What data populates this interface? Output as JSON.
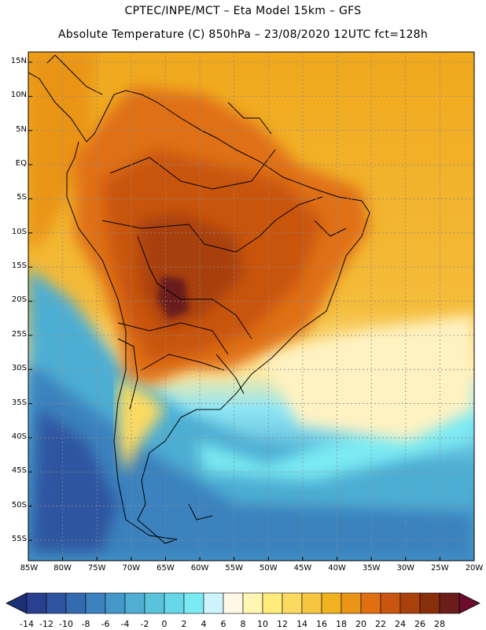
{
  "header": {
    "line1": "CPTEC/INPE/MCT –  Eta Model 15km – GFS",
    "line2": "Absolute Temperature (C) 850hPa – 23/08/2020 12UTC fct=128h"
  },
  "map": {
    "lat_labels": [
      "15N",
      "10N",
      "5N",
      "EQ",
      "5S",
      "10S",
      "15S",
      "20S",
      "25S",
      "30S",
      "35S",
      "40S",
      "45S",
      "50S",
      "55S"
    ],
    "lon_labels": [
      "85W",
      "80W",
      "75W",
      "70W",
      "65W",
      "60W",
      "55W",
      "50W",
      "45W",
      "40W",
      "35W",
      "30W",
      "25W",
      "20W"
    ],
    "lat_values": [
      15,
      10,
      5,
      0,
      -5,
      -10,
      -15,
      -20,
      -25,
      -30,
      -35,
      -40,
      -45,
      -50,
      -55
    ],
    "lon_values": [
      -85,
      -80,
      -75,
      -70,
      -65,
      -60,
      -55,
      -50,
      -45,
      -40,
      -35,
      -30,
      -25,
      -20
    ],
    "lat_range": [
      -58,
      16.5
    ],
    "lon_range": [
      -85,
      -20
    ]
  },
  "colorbar": {
    "labels": [
      "-14",
      "-12",
      "-10",
      "-8",
      "-6",
      "-4",
      "-2",
      "0",
      "2",
      "4",
      "6",
      "8",
      "10",
      "12",
      "14",
      "16",
      "18",
      "20",
      "22",
      "24",
      "26",
      "28"
    ],
    "colors": [
      "#2b3f8f",
      "#2f55a0",
      "#346bb0",
      "#3b82be",
      "#4498c9",
      "#4eaed3",
      "#5ac3dc",
      "#66d7e8",
      "#7aeaf3",
      "#cdf4fb",
      "#fff8e6",
      "#fff6b3",
      "#ffec7a",
      "#fbda62",
      "#f6c642",
      "#f0b21f",
      "#ea9418",
      "#e06f12",
      "#c9550e",
      "#a8410b",
      "#862f0a",
      "#6b1d1a"
    ],
    "low_color": "#1f2f76",
    "high_color": "#6b0d2a"
  }
}
